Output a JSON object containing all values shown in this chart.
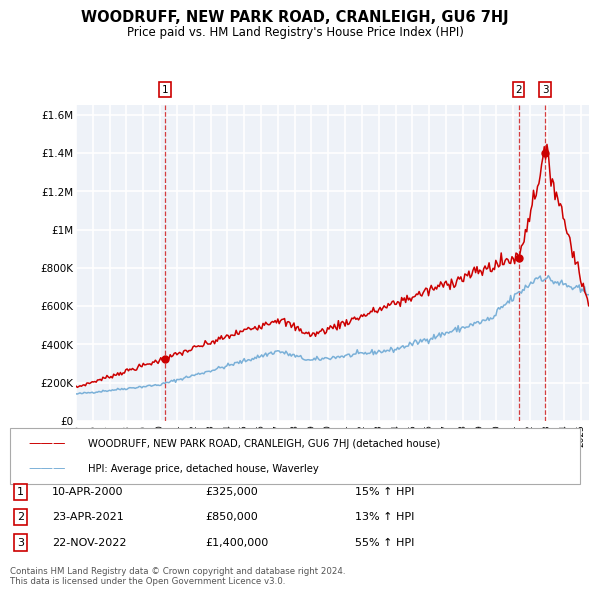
{
  "title": "WOODRUFF, NEW PARK ROAD, CRANLEIGH, GU6 7HJ",
  "subtitle": "Price paid vs. HM Land Registry's House Price Index (HPI)",
  "footnote": "Contains HM Land Registry data © Crown copyright and database right 2024.\nThis data is licensed under the Open Government Licence v3.0.",
  "legend_red": "WOODRUFF, NEW PARK ROAD, CRANLEIGH, GU6 7HJ (detached house)",
  "legend_blue": "HPI: Average price, detached house, Waverley",
  "transactions": [
    {
      "num": 1,
      "date": "10-APR-2000",
      "price": "£325,000",
      "pct": "15%",
      "dir": "↑",
      "year": 2000.28,
      "price_val": 325000
    },
    {
      "num": 2,
      "date": "23-APR-2021",
      "price": "£850,000",
      "pct": "13%",
      "dir": "↑",
      "year": 2021.31,
      "price_val": 850000
    },
    {
      "num": 3,
      "date": "22-NOV-2022",
      "price": "£1,400,000",
      "pct": "55%",
      "dir": "↑",
      "year": 2022.89,
      "price_val": 1400000
    }
  ],
  "background_color": "#eef2f8",
  "grid_color": "#ffffff",
  "red_color": "#cc0000",
  "blue_color": "#7ab0d8",
  "ylim": [
    0,
    1650000
  ],
  "xlim_start": 1995.0,
  "xlim_end": 2025.5,
  "yticks": [
    0,
    200000,
    400000,
    600000,
    800000,
    1000000,
    1200000,
    1400000,
    1600000
  ],
  "ylabels": [
    "£0",
    "£200K",
    "£400K",
    "£600K",
    "£800K",
    "£1M",
    "£1.2M",
    "£1.4M",
    "£1.6M"
  ]
}
